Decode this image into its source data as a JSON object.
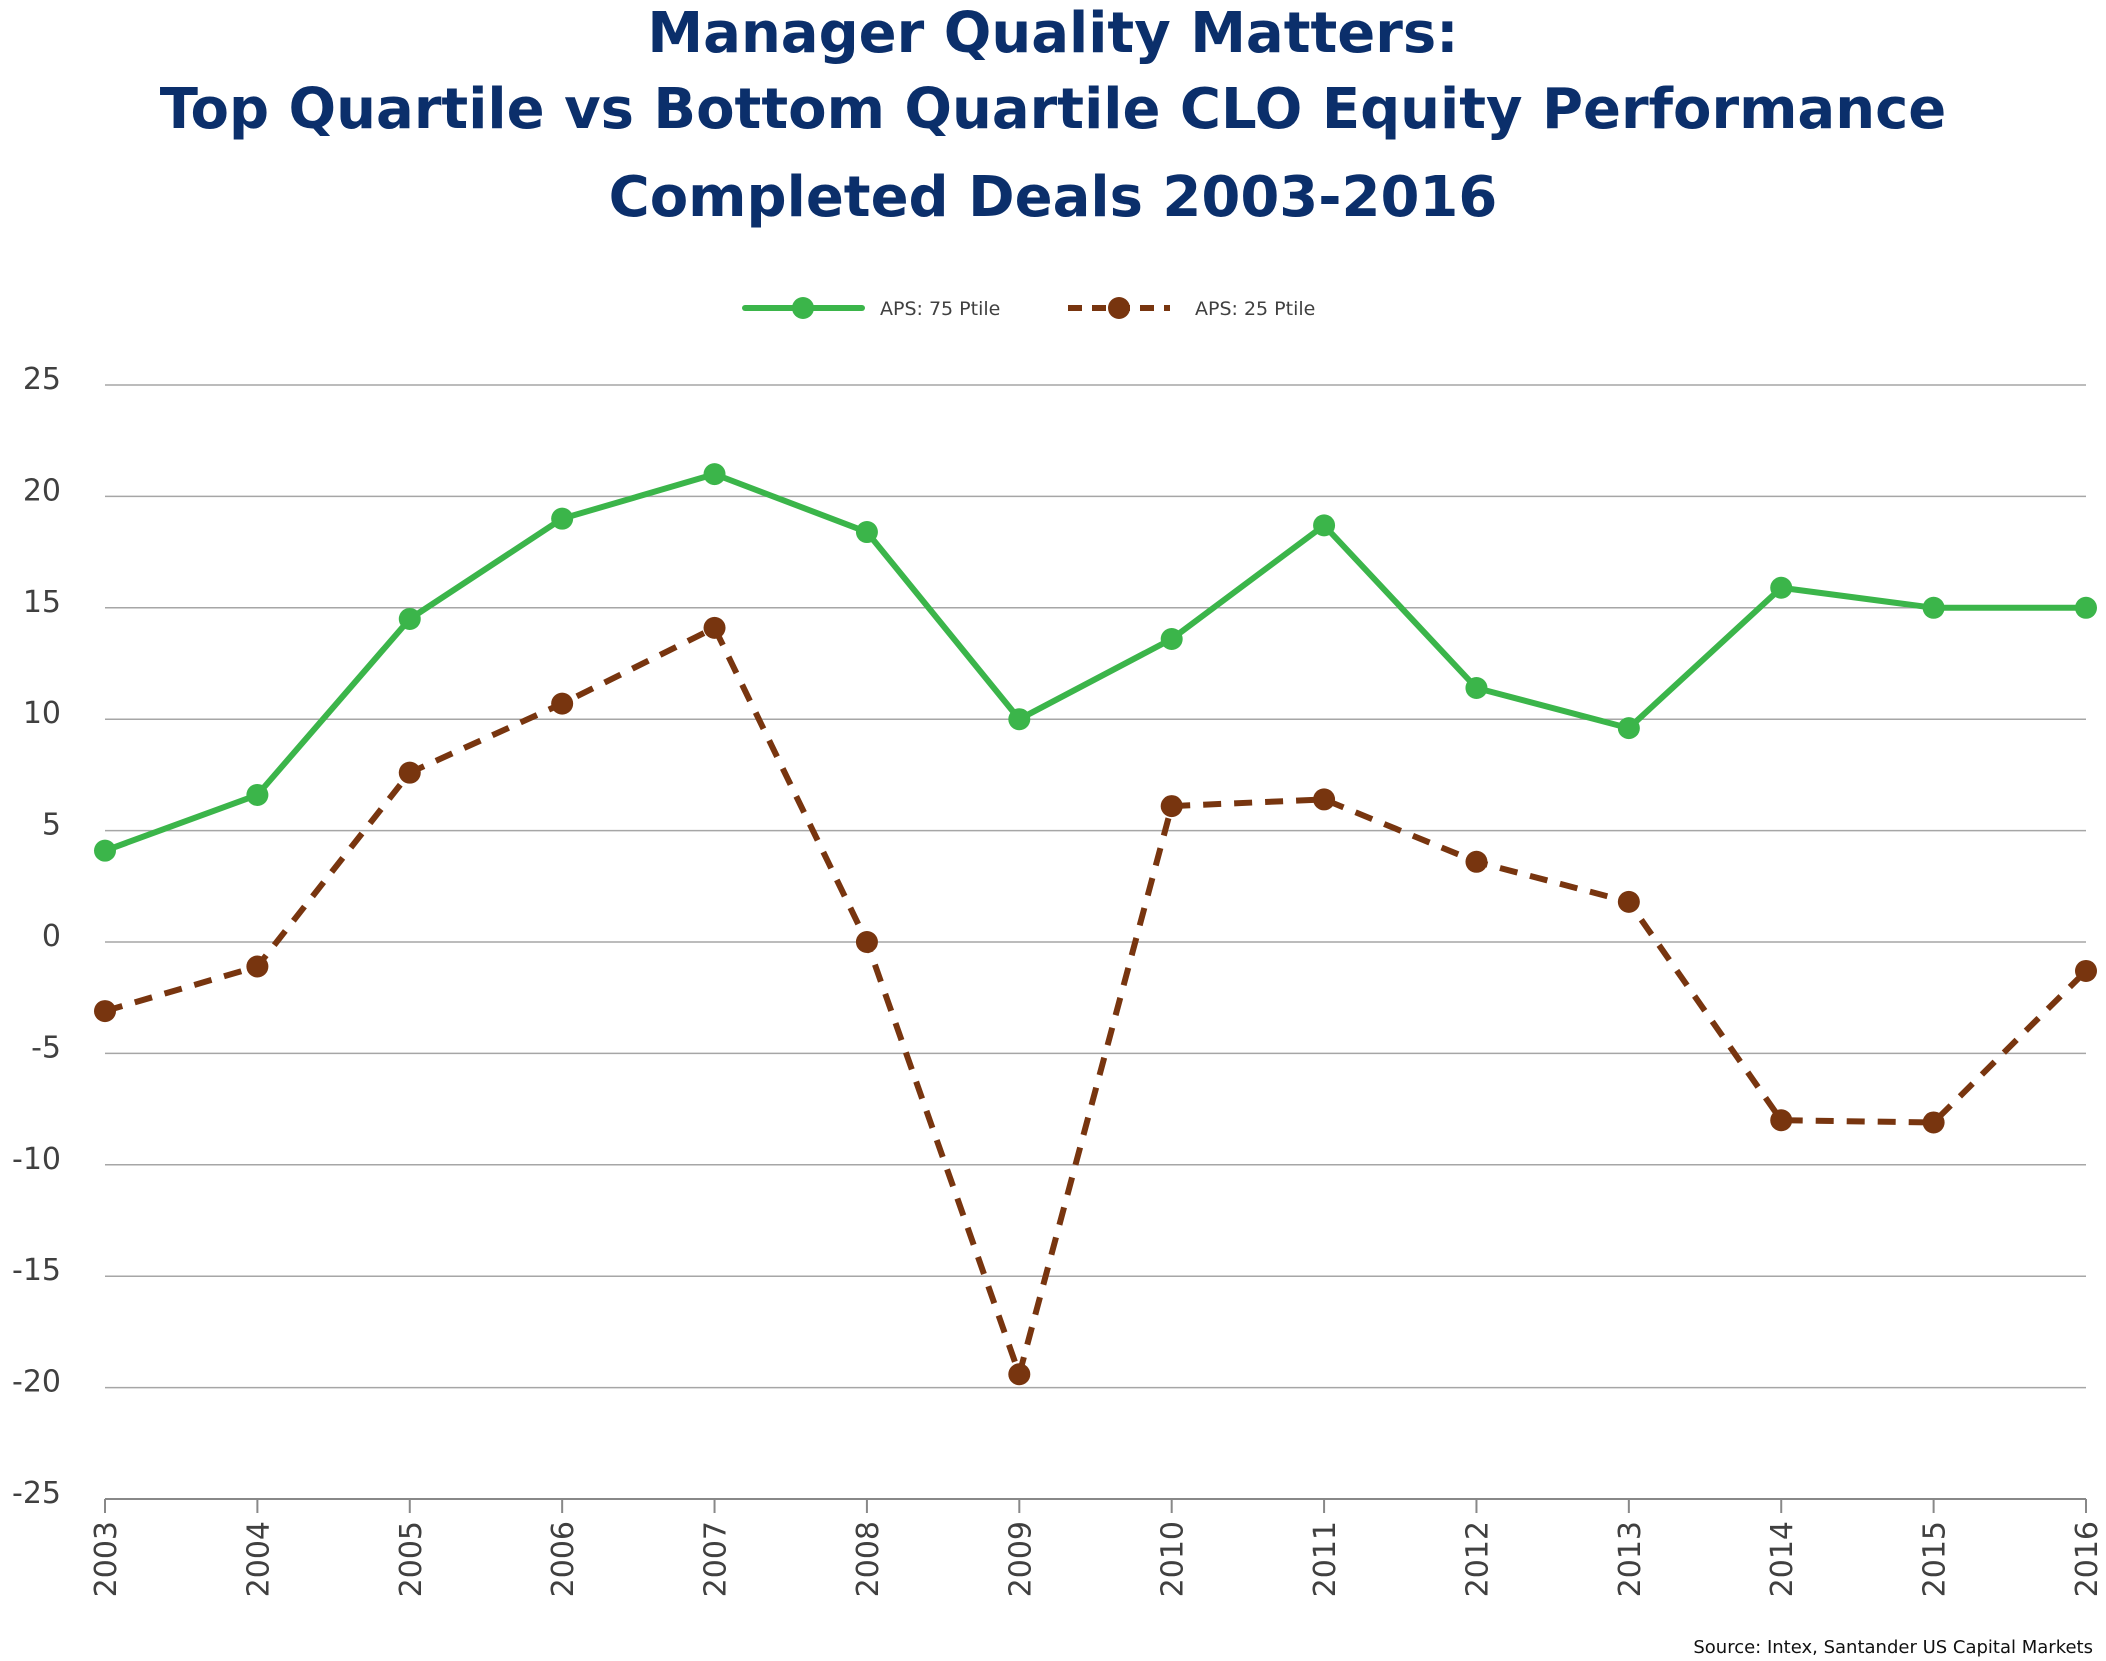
{
  "chart_data": {
    "type": "line",
    "title": [
      "Manager Quality Matters:",
      "Top Quartile vs Bottom Quartile CLO Equity Performance",
      "Completed Deals 2003-2016"
    ],
    "xlabel": "",
    "ylabel": "",
    "categories": [
      "2003",
      "2004",
      "2005",
      "2006",
      "2007",
      "2008",
      "2009",
      "2010",
      "2011",
      "2012",
      "2013",
      "2014",
      "2015",
      "2016"
    ],
    "ylim": [
      -25,
      25
    ],
    "yticks": [
      25,
      20,
      15,
      10,
      5,
      0,
      -5,
      -10,
      -15,
      -20,
      -25
    ],
    "ytick_labels": [
      "25",
      "20",
      "15",
      "10",
      "5",
      "0",
      "-5",
      "-10",
      "-15",
      "-20",
      "-25"
    ],
    "grid": true,
    "legend_position": "top-center",
    "series": [
      {
        "name": "APS: 75 Ptile",
        "color": "#3bb54a",
        "style": "solid",
        "values": [
          4.1,
          6.6,
          14.5,
          19.0,
          21.0,
          18.4,
          10.0,
          13.6,
          18.7,
          11.4,
          9.6,
          15.9,
          15.0,
          15.0
        ]
      },
      {
        "name": "APS: 25 Ptile",
        "color": "#78350f",
        "style": "dashed",
        "values": [
          -3.1,
          -1.1,
          7.6,
          10.7,
          14.1,
          0.0,
          -19.4,
          6.1,
          6.4,
          3.6,
          1.8,
          -8.0,
          -8.1,
          -1.3
        ]
      }
    ],
    "source": "Source: Intex, Santander US Capital Markets"
  }
}
